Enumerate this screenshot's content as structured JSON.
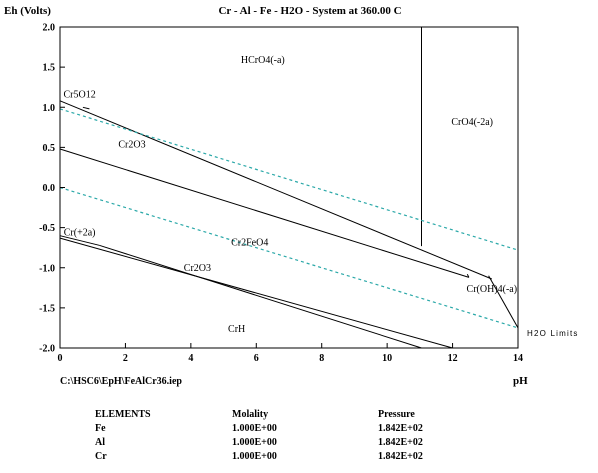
{
  "chart_data": {
    "type": "line",
    "title": "Cr - Al - Fe - H2O - System at 360.00 C",
    "ylabel": "Eh (Volts)",
    "xlabel": "pH",
    "xlim": [
      0,
      14
    ],
    "ylim": [
      -2.0,
      2.0
    ],
    "x_ticks": [
      0,
      2,
      4,
      6,
      8,
      10,
      12,
      14
    ],
    "y_ticks": [
      2.0,
      1.5,
      1.0,
      0.5,
      0.0,
      -0.5,
      -1.0,
      -1.5,
      -2.0
    ],
    "boundaries": [
      {
        "points": [
          [
            0,
            1.08
          ],
          [
            13.2,
            -1.14
          ]
        ]
      },
      {
        "points": [
          [
            0,
            0.48
          ],
          [
            12.5,
            -1.12
          ]
        ]
      },
      {
        "points": [
          [
            11.05,
            2.0
          ],
          [
            11.05,
            -0.73
          ]
        ]
      },
      {
        "points": [
          [
            12.45,
            -1.08
          ],
          [
            12.5,
            -1.12
          ]
        ]
      },
      {
        "points": [
          [
            0,
            -0.63
          ],
          [
            12.0,
            -2.0
          ]
        ]
      },
      {
        "points": [
          [
            1.2,
            -0.72
          ],
          [
            11.05,
            -2.0
          ]
        ]
      },
      {
        "points": [
          [
            0,
            -0.6
          ],
          [
            1.2,
            -0.72
          ]
        ]
      },
      {
        "points": [
          [
            0.7,
            1.0
          ],
          [
            0.9,
            0.98
          ]
        ]
      },
      {
        "points": [
          [
            13.1,
            -1.1
          ],
          [
            14,
            -1.75
          ]
        ]
      }
    ],
    "water_limits": [
      {
        "points": [
          [
            0,
            0.98
          ],
          [
            14,
            -0.78
          ]
        ]
      },
      {
        "points": [
          [
            0,
            0.0
          ],
          [
            14,
            -1.75
          ]
        ]
      }
    ],
    "water_limits_label": "H2O Limits",
    "region_labels": [
      {
        "text": "HCrO4(-a)",
        "x": 6.2,
        "y": 1.55
      },
      {
        "text": "CrO4(-2a)",
        "x": 12.6,
        "y": 0.78
      },
      {
        "text": "Cr5O12",
        "x": 0.6,
        "y": 1.12
      },
      {
        "text": "Cr2O3",
        "x": 2.2,
        "y": 0.5
      },
      {
        "text": "Cr2FeO4",
        "x": 5.8,
        "y": -0.72
      },
      {
        "text": "Cr(+2a)",
        "x": 0.6,
        "y": -0.6
      },
      {
        "text": "Cr2O3",
        "x": 4.2,
        "y": -1.04
      },
      {
        "text": "Cr(OH)4(-a)",
        "x": 13.2,
        "y": -1.3
      },
      {
        "text": "CrH",
        "x": 5.4,
        "y": -1.8
      }
    ]
  },
  "file_path": "C:\\HSC6\\EpH\\FeAlCr36.iep",
  "elements_table": {
    "headers": [
      "ELEMENTS",
      "Molality",
      "Pressure"
    ],
    "rows": [
      [
        "Fe",
        "1.000E+00",
        "1.842E+02"
      ],
      [
        "Al",
        "1.000E+00",
        "1.842E+02"
      ],
      [
        "Cr",
        "1.000E+00",
        "1.842E+02"
      ]
    ]
  },
  "colors": {
    "axis": "#000000",
    "boundary": "#000000",
    "water_limit": "#2aa8a8"
  }
}
